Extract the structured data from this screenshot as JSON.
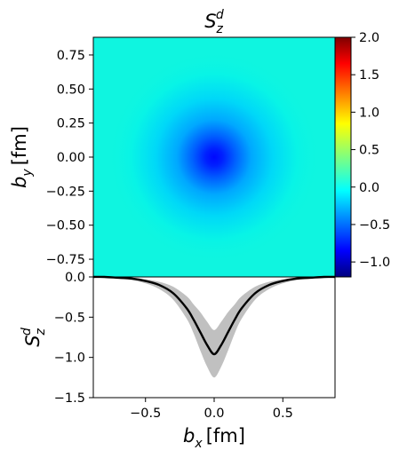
{
  "chart_data": [
    {
      "type": "heatmap",
      "title_base": "S",
      "title_sub": "z",
      "title_sup": "d",
      "xlabel": "",
      "ylabel_base": "b",
      "ylabel_sub": "y",
      "ylabel_unit": "[fm]",
      "xlim": [
        -0.88,
        0.88
      ],
      "ylim": [
        -0.88,
        0.88
      ],
      "yticks": [
        0.75,
        0.5,
        0.25,
        0.0,
        -0.25,
        -0.5,
        -0.75
      ],
      "ytick_labels": [
        "0.75",
        "0.50",
        "0.25",
        "0.00",
        "−0.25",
        "−0.50",
        "−0.75"
      ],
      "colormap": "jet",
      "value_range": [
        -1.2,
        2.0
      ],
      "colorbar_ticks": [
        2.0,
        1.5,
        1.0,
        0.5,
        0.0,
        -0.5,
        -1.0
      ],
      "colorbar_tick_labels": [
        "2.0",
        "1.5",
        "1.0",
        "0.5",
        "0.0",
        "−0.5",
        "−1.0"
      ],
      "center": [
        0.0,
        0.0
      ],
      "peak_value": -0.95,
      "background_value": 0.0
    },
    {
      "type": "line",
      "xlabel_base": "b",
      "xlabel_sub": "x",
      "xlabel_unit": "[fm]",
      "ylabel_base": "S",
      "ylabel_sub": "z",
      "ylabel_sup": "d",
      "xlim": [
        -0.88,
        0.88
      ],
      "ylim": [
        -1.5,
        0.0
      ],
      "xticks": [
        -0.5,
        0.0,
        0.5
      ],
      "xtick_labels": [
        "−0.5",
        "0.0",
        "0.5"
      ],
      "yticks": [
        0.0,
        -0.5,
        -1.0,
        -1.5
      ],
      "ytick_labels": [
        "0.0",
        "−0.5",
        "−1.0",
        "−1.5"
      ],
      "band_color": "#c0c0c0",
      "line_color": "#000000",
      "x": [
        -0.88,
        -0.8,
        -0.7,
        -0.6,
        -0.5,
        -0.4,
        -0.3,
        -0.2,
        -0.15,
        -0.1,
        -0.05,
        0.0,
        0.05,
        0.1,
        0.15,
        0.2,
        0.3,
        0.4,
        0.5,
        0.6,
        0.7,
        0.8,
        0.88
      ],
      "y": [
        0.0,
        0.0,
        -0.01,
        -0.02,
        -0.05,
        -0.1,
        -0.2,
        -0.39,
        -0.53,
        -0.69,
        -0.85,
        -0.96,
        -0.85,
        -0.69,
        -0.53,
        -0.39,
        -0.2,
        -0.1,
        -0.05,
        -0.02,
        -0.01,
        0.0,
        0.0
      ],
      "y_upper": [
        0.0,
        0.0,
        0.0,
        -0.01,
        -0.03,
        -0.06,
        -0.12,
        -0.24,
        -0.34,
        -0.44,
        -0.56,
        -0.66,
        -0.56,
        -0.44,
        -0.34,
        -0.24,
        -0.12,
        -0.06,
        -0.03,
        -0.01,
        0.0,
        0.0,
        0.0
      ],
      "y_lower": [
        0.0,
        -0.01,
        -0.02,
        -0.04,
        -0.08,
        -0.15,
        -0.28,
        -0.52,
        -0.7,
        -0.92,
        -1.12,
        -1.25,
        -1.12,
        -0.92,
        -0.7,
        -0.52,
        -0.28,
        -0.15,
        -0.08,
        -0.04,
        -0.02,
        -0.01,
        0.0
      ]
    }
  ]
}
